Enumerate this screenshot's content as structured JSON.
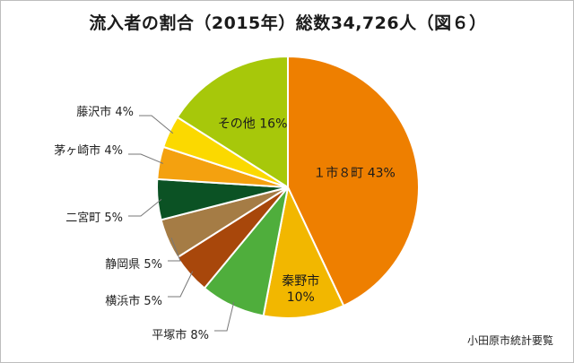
{
  "chart_data": {
    "type": "pie",
    "title": "流入者の割合（2015年）総数34,726人（図６）",
    "source": "小田原市統計要覧",
    "start_angle_deg": 0,
    "direction": "clockwise",
    "slices": [
      {
        "label": "１市８町 43%",
        "value": 43,
        "color": "#ee7f00",
        "label_placement": "inside",
        "label_color": "#1a1a1a"
      },
      {
        "label": "秦野市 10%",
        "value": 10,
        "color": "#f2b700",
        "label_placement": "inside",
        "label_color": "#1a1a1a"
      },
      {
        "label": "平塚市 8%",
        "value": 8,
        "color": "#4fae3c",
        "label_placement": "outside",
        "label_color": "#222222"
      },
      {
        "label": "横浜市 5%",
        "value": 5,
        "color": "#a8470b",
        "label_placement": "outside",
        "label_color": "#222222"
      },
      {
        "label": "静岡県 5%",
        "value": 5,
        "color": "#a57c45",
        "label_placement": "outside",
        "label_color": "#222222"
      },
      {
        "label": "二宮町 5%",
        "value": 5,
        "color": "#0b5224",
        "label_placement": "outside",
        "label_color": "#222222"
      },
      {
        "label": "茅ヶ崎市 4%",
        "value": 4,
        "color": "#f4a10f",
        "label_placement": "outside",
        "label_color": "#222222"
      },
      {
        "label": "藤沢市 4%",
        "value": 4,
        "color": "#fbd900",
        "label_placement": "outside",
        "label_color": "#222222"
      },
      {
        "label": "その他 16%",
        "value": 16,
        "color": "#a7c80a",
        "label_placement": "inside",
        "label_color": "#1a1a1a"
      }
    ]
  }
}
